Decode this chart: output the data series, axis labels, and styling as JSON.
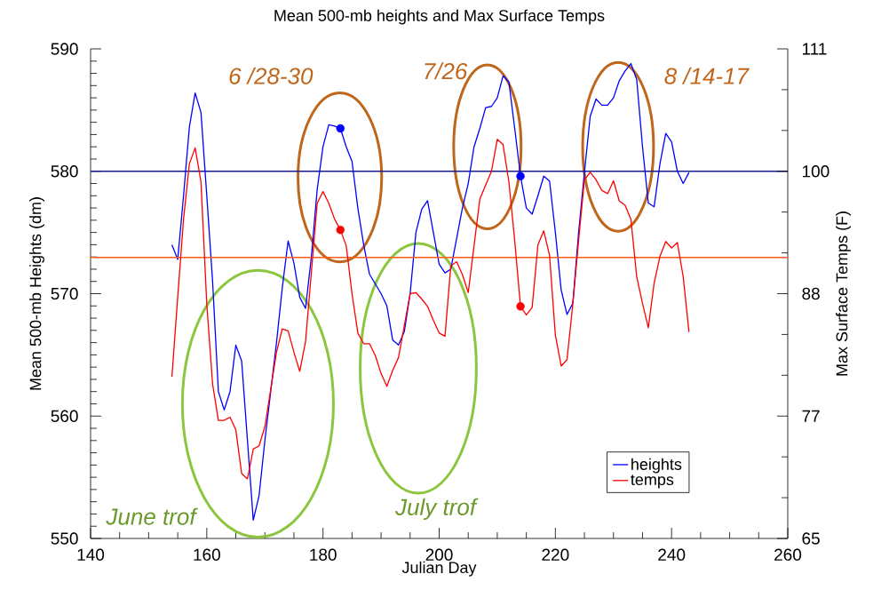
{
  "chart_data": {
    "type": "line",
    "title": "Mean 500-mb heights and Max Surface Temps",
    "xlabel": "Julian Day",
    "ylabel": "Mean 500-mb Heights (dm)",
    "y2label": "Max Surface Temps (F)",
    "xlim": [
      140,
      260
    ],
    "xticks": [
      140,
      160,
      180,
      200,
      220,
      240,
      260
    ],
    "ylim": [
      550,
      590
    ],
    "yticks": [
      550,
      560,
      570,
      580,
      590
    ],
    "y2lim": [
      65,
      111
    ],
    "y2ticks": [
      {
        "value": 65,
        "label": "65"
      },
      {
        "value": 76.5,
        "label": "77"
      },
      {
        "value": 88,
        "label": "88"
      },
      {
        "value": 99.5,
        "label": "100"
      },
      {
        "value": 111,
        "label": "111"
      }
    ],
    "legend": "bottom right",
    "line_style": "solid",
    "series": [
      {
        "name": "heights",
        "color": "#0000ff",
        "x": [
          154,
          155,
          156,
          157,
          158,
          159,
          160,
          161,
          162,
          163,
          164,
          165,
          166,
          167,
          168,
          169,
          170,
          171,
          172,
          173,
          174,
          175,
          176,
          177,
          178,
          179,
          180,
          181,
          182,
          183,
          184,
          185,
          186,
          187,
          188,
          189,
          190,
          191,
          192,
          193,
          194,
          195,
          196,
          197,
          198,
          199,
          200,
          201,
          202,
          203,
          204,
          205,
          206,
          207,
          208,
          209,
          210,
          211,
          212,
          213,
          214,
          215,
          216,
          217,
          218,
          219,
          220,
          221,
          222,
          223,
          224,
          225,
          226,
          227,
          228,
          229,
          230,
          231,
          232,
          233,
          234,
          235,
          236,
          237,
          238,
          239,
          240,
          241,
          242,
          243
        ],
        "values": [
          574.0,
          572.8,
          578,
          583.6,
          586.4,
          584.8,
          578,
          571,
          562,
          560.5,
          562,
          565.8,
          564.5,
          558,
          551.5,
          553.5,
          558,
          562,
          566,
          570.5,
          574.3,
          572.5,
          569.7,
          568.8,
          573,
          578.5,
          582,
          583.8,
          583.7,
          583.5,
          582,
          580.8,
          577,
          574,
          571.6,
          570.8,
          570,
          569,
          566.2,
          565.8,
          566.9,
          570,
          575,
          576.9,
          577.6,
          575,
          572.4,
          571.7,
          572,
          574.5,
          577,
          579,
          582,
          583.5,
          585.2,
          585.3,
          586,
          587.8,
          587.3,
          583.5,
          579.6,
          577,
          576.5,
          578,
          579.6,
          579.2,
          575,
          570.3,
          568.3,
          569.2,
          575,
          579.9,
          584.5,
          585.9,
          585.4,
          585.4,
          586,
          587.4,
          588.2,
          588.8,
          587.5,
          582,
          577.4,
          577.1,
          580.6,
          583.1,
          582.4,
          580,
          579,
          579.9
        ]
      },
      {
        "name": "temps",
        "color": "#ff0000",
        "axis": "y2",
        "x": [
          154,
          155,
          156,
          157,
          158,
          159,
          160,
          161,
          162,
          163,
          164,
          165,
          166,
          167,
          168,
          169,
          170,
          171,
          172,
          173,
          174,
          175,
          176,
          177,
          178,
          179,
          180,
          181,
          182,
          183,
          184,
          185,
          186,
          187,
          188,
          189,
          190,
          191,
          192,
          193,
          194,
          195,
          196,
          197,
          198,
          199,
          200,
          201,
          202,
          203,
          204,
          205,
          206,
          207,
          208,
          209,
          210,
          211,
          212,
          213,
          214,
          215,
          216,
          217,
          218,
          219,
          220,
          221,
          222,
          223,
          224,
          225,
          226,
          227,
          228,
          229,
          230,
          231,
          232,
          233,
          234,
          235,
          236,
          237,
          238,
          239,
          240,
          241,
          242,
          243
        ],
        "values": [
          80.2,
          87.7,
          95,
          100.2,
          101.7,
          98.5,
          87,
          79.5,
          76.1,
          76.1,
          76.4,
          75.2,
          71.1,
          70.6,
          73.4,
          73.7,
          75.5,
          79,
          82.5,
          84.7,
          84.5,
          82.5,
          80.7,
          83.5,
          90,
          96.5,
          97.6,
          96.5,
          95,
          94.0,
          92.5,
          88,
          84.3,
          83.3,
          83.3,
          82.2,
          80.5,
          79.3,
          80.8,
          82,
          85,
          88,
          88.1,
          87.5,
          86.8,
          85.5,
          84.3,
          84.0,
          90.6,
          91.0,
          89.8,
          88.1,
          92.5,
          96.9,
          98.2,
          99.5,
          102.5,
          102.0,
          98.5,
          93,
          86.8,
          86.0,
          86.7,
          92.6,
          93.9,
          91.6,
          84.1,
          81.2,
          81.8,
          87,
          93,
          98.7,
          99.4,
          98.7,
          97.7,
          97.4,
          98.6,
          96.7,
          96.3,
          95.0,
          89.6,
          87.1,
          84.8,
          89.0,
          91.5,
          92.9,
          92.3,
          92.8,
          89.6,
          84.4
        ]
      },
      {
        "type": "scatter",
        "marker": "circle",
        "color": "#0000ff",
        "x": [
          183,
          214
        ],
        "values": [
          583.5,
          579.6
        ]
      },
      {
        "type": "scatter",
        "marker": "circle",
        "color": "#ff0000",
        "axis": "y2",
        "x": [
          183,
          214
        ],
        "values": [
          94.0,
          86.8
        ]
      }
    ],
    "ref_lines": [
      {
        "axis": "y",
        "value": 580,
        "color": "#1a1a8c"
      },
      {
        "axis": "y2",
        "value": 91.4,
        "color": "#ff5a1a"
      }
    ],
    "annotations": [
      "6 /28-30",
      "7/26",
      "8 /14-17",
      "June trof",
      "July trof"
    ]
  }
}
